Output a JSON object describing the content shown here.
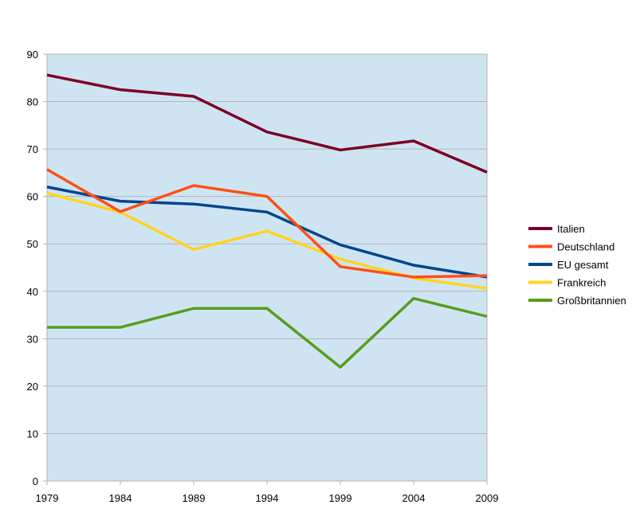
{
  "chart_data": {
    "type": "line",
    "x": [
      1979,
      1984,
      1989,
      1994,
      1999,
      2004,
      2009
    ],
    "ylim": [
      0,
      90
    ],
    "yticks": [
      0,
      10,
      20,
      30,
      40,
      50,
      60,
      70,
      80,
      90
    ],
    "grid": true,
    "legend_position": "right",
    "plot_background": "#cfe4f3",
    "series": [
      {
        "name": "Italien",
        "color": "#7b0025",
        "values": [
          85.6,
          82.5,
          81.1,
          73.6,
          69.8,
          71.7,
          65.1
        ]
      },
      {
        "name": "Deutschland",
        "color": "#ff4f14",
        "values": [
          65.7,
          56.8,
          62.3,
          60.0,
          45.2,
          43.0,
          43.3
        ]
      },
      {
        "name": "EU gesamt",
        "color": "#00468c",
        "values": [
          62.0,
          59.0,
          58.4,
          56.7,
          49.8,
          45.5,
          43.0
        ]
      },
      {
        "name": "Frankreich",
        "color": "#ffd320",
        "values": [
          60.7,
          56.7,
          48.8,
          52.7,
          46.8,
          42.8,
          40.6
        ]
      },
      {
        "name": "Großbritannien",
        "color": "#579d1c",
        "values": [
          32.4,
          32.4,
          36.4,
          36.4,
          24.0,
          38.5,
          34.7
        ]
      }
    ]
  }
}
